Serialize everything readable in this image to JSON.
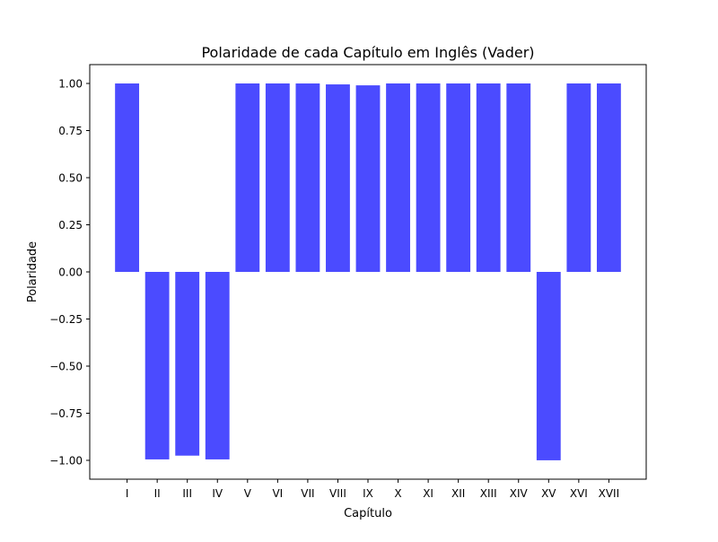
{
  "chart_data": {
    "type": "bar",
    "title": "Polaridade de cada Capítulo em Inglês (Vader)",
    "xlabel": "Capítulo",
    "ylabel": "Polaridade",
    "categories": [
      "I",
      "II",
      "III",
      "IV",
      "V",
      "VI",
      "VII",
      "VIII",
      "IX",
      "X",
      "XI",
      "XII",
      "XIII",
      "XIV",
      "XV",
      "XVI",
      "XVII"
    ],
    "values": [
      0.9999,
      -0.995,
      -0.975,
      -0.995,
      1.0,
      1.0,
      0.9999,
      0.995,
      0.99,
      1.0,
      1.0,
      0.9999,
      1.0,
      1.0,
      -0.9997,
      1.0,
      1.0
    ],
    "ylim": [
      -1.1,
      1.1
    ],
    "yticks": [
      -1.0,
      -0.75,
      -0.5,
      -0.25,
      0.0,
      0.25,
      0.5,
      0.75,
      1.0
    ],
    "ytick_labels": [
      "−1.00",
      "−0.75",
      "−0.50",
      "−0.25",
      "0.00",
      "0.25",
      "0.50",
      "0.75",
      "1.00"
    ],
    "bar_color": "#4b4bff",
    "grid": false,
    "legend": "none"
  }
}
